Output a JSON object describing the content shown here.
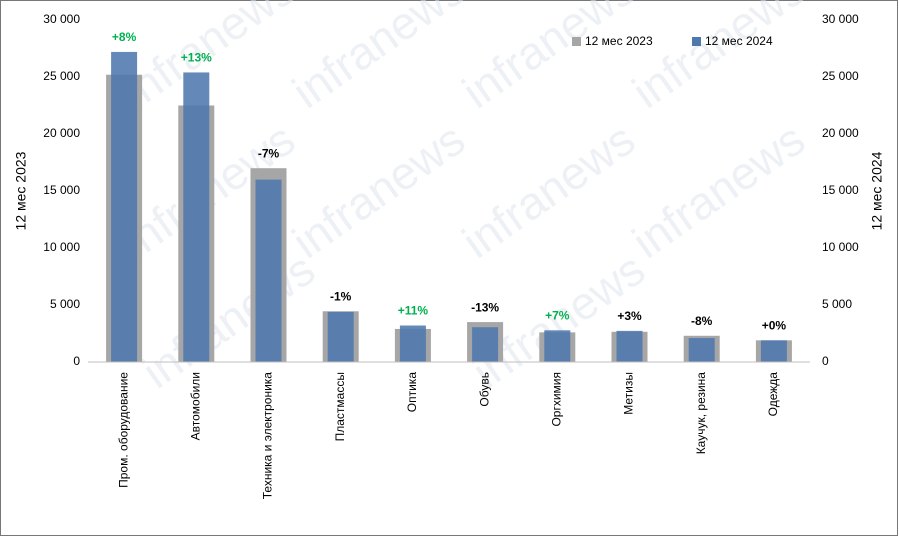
{
  "chart_data": {
    "type": "bar",
    "categories": [
      "Пром. оборудование",
      "Автомобили",
      "Техника и электроника",
      "Пластмассы",
      "Оптика",
      "Обувь",
      "Оргхимия",
      "Метизы",
      "Каучук, резина",
      "Одежда"
    ],
    "series": [
      {
        "name": "12 мес 2023",
        "color": "#a6a6a6",
        "values": [
          25200,
          22500,
          17000,
          4450,
          2900,
          3500,
          2600,
          2650,
          2300,
          1900
        ]
      },
      {
        "name": "12 мес 2024",
        "color": "#4f78ad",
        "axis": "y2",
        "values": [
          27200,
          25400,
          16000,
          4400,
          3200,
          3050,
          2780,
          2730,
          2100,
          1900
        ]
      }
    ],
    "annotations": [
      "+8%",
      "+13%",
      "-7%",
      "-1%",
      "+11%",
      "-13%",
      "+7%",
      "+3%",
      "-8%",
      "+0%"
    ],
    "annotation_colors": [
      "#00b050",
      "#00b050",
      "#000000",
      "#000000",
      "#00b050",
      "#000000",
      "#00b050",
      "#000000",
      "#000000",
      "#000000"
    ],
    "ylabel": "12 мес 2023",
    "y2label": "12 мес 2024",
    "ylim": [
      0,
      30000
    ],
    "yticks": [
      0,
      {
        "value": 5000,
        "label": "5 000"
      },
      {
        "value": 10000,
        "label": "10 000"
      },
      {
        "value": 15000,
        "label": "15 000"
      },
      {
        "value": 20000,
        "label": "20 000"
      },
      {
        "value": 25000,
        "label": "25 000"
      },
      {
        "value": 30000,
        "label": "30 000"
      }
    ],
    "y2lim": [
      0,
      30000
    ],
    "y2ticks": [
      0,
      {
        "value": 5000,
        "label": "5 000"
      },
      {
        "value": 10000,
        "label": "10 000"
      },
      {
        "value": 15000,
        "label": "15 000"
      },
      {
        "value": 20000,
        "label": "20 000"
      },
      {
        "value": 25000,
        "label": "25 000"
      },
      {
        "value": 30000,
        "label": "30 000"
      }
    ],
    "legend": "top-right",
    "watermark": "infranews"
  }
}
